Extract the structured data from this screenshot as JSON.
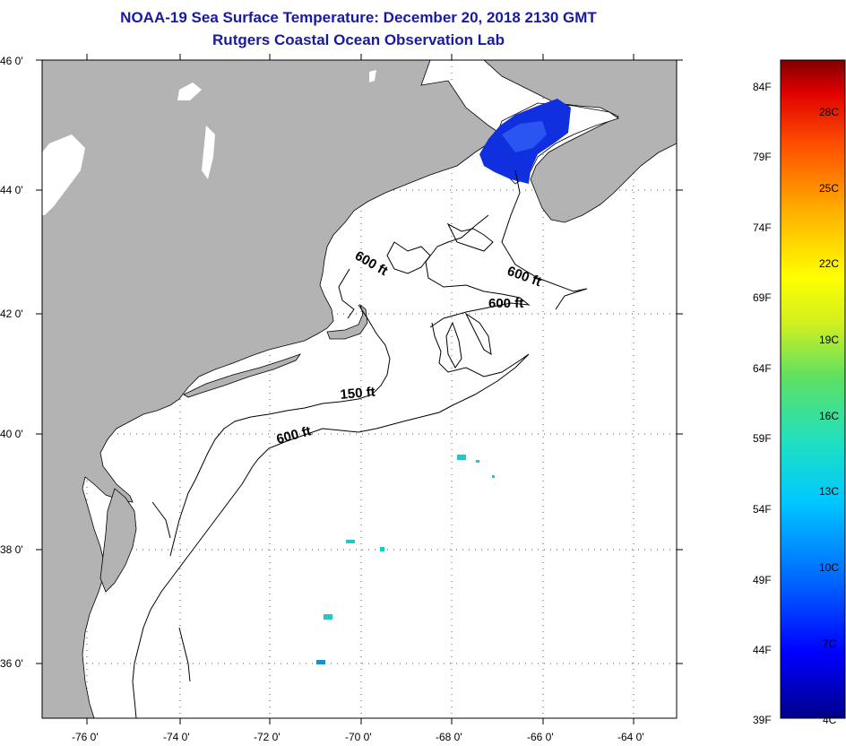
{
  "title": {
    "line1": "NOAA-19 Sea Surface Temperature:  December 20, 2018 2130 GMT",
    "line2": "Rutgers Coastal Ocean Observation Lab"
  },
  "map": {
    "lat_labels": [
      "46 0'",
      "44 0'",
      "42 0'",
      "40 0'",
      "38 0'",
      "36 0'"
    ],
    "lon_labels": [
      "-76 0'",
      "-74 0'",
      "-72 0'",
      "-70 0'",
      "-68 0'",
      "-66 0'",
      "-64 0'"
    ],
    "lat_range": [
      35,
      46
    ],
    "lon_range": [
      -77,
      -63
    ],
    "contour_labels": [
      "600 ft",
      "600 ft",
      "600 ft",
      "150 ft",
      "600 ft"
    ],
    "colors": {
      "land": "#b3b3b3",
      "water": "#ffffff",
      "gulf_of_maine_sst": "#1030e0",
      "offshore_sst": "#22c8c8"
    }
  },
  "colorbar": {
    "fahrenheit_labels": [
      "84F",
      "79F",
      "74F",
      "69F",
      "64F",
      "59F",
      "54F",
      "49F",
      "44F",
      "39F"
    ],
    "celsius_labels": [
      "28C",
      "25C",
      "22C",
      "19C",
      "16C",
      "13C",
      "10C",
      "7C",
      "4C"
    ],
    "range_f": [
      39,
      86
    ],
    "colors": [
      "#00008b",
      "#0000ff",
      "#0070ff",
      "#00c8ff",
      "#20e0c0",
      "#60e060",
      "#d0f020",
      "#ffff00",
      "#ffb000",
      "#ff5000",
      "#e00000",
      "#800000"
    ]
  }
}
